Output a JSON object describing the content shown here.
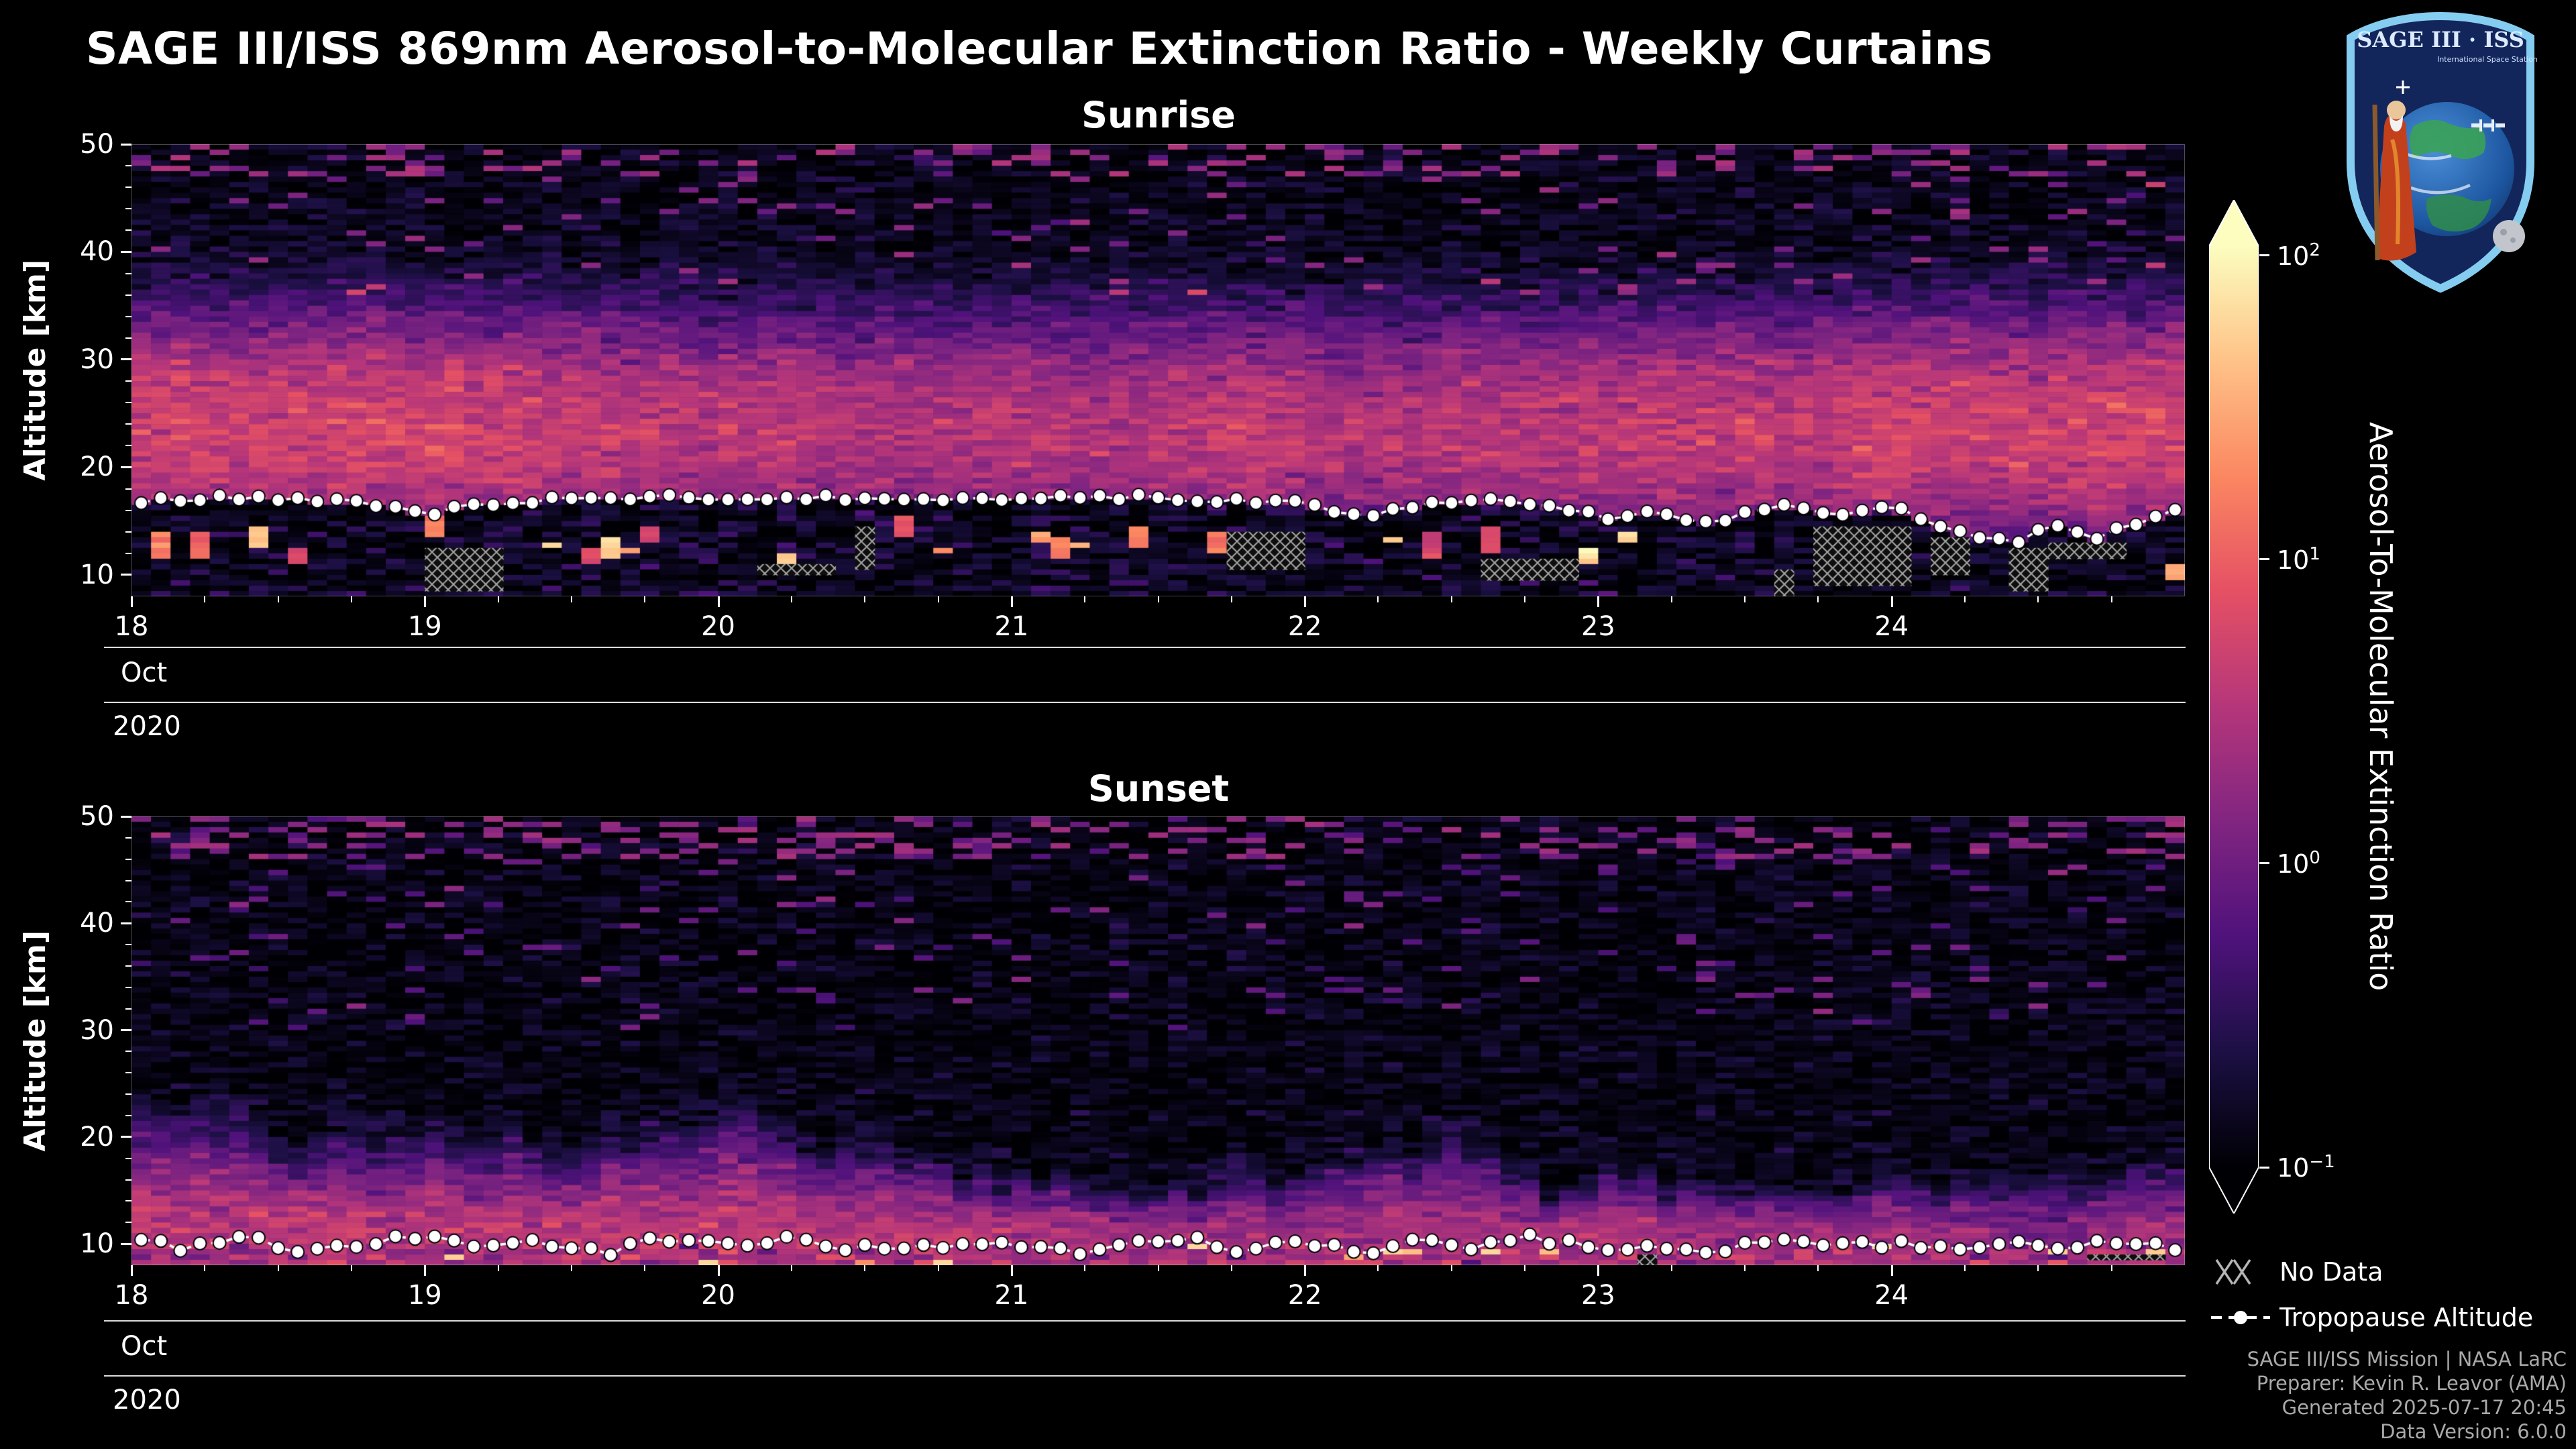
{
  "page": {
    "background": "#000000"
  },
  "header": {
    "title": "SAGE III/ISS 869nm Aerosol-to-Molecular Extinction Ratio - Weekly Curtains"
  },
  "logo": {
    "title": "SAGE III · ISS",
    "subtitle": "International Space Station"
  },
  "colorbar": {
    "label": "Aerosol-To-Molecular Extinction Ratio",
    "ticks": [
      {
        "base": "10",
        "exp": "2",
        "exp_value": 2
      },
      {
        "base": "10",
        "exp": "1",
        "exp_value": 1
      },
      {
        "base": "10",
        "exp": "0",
        "exp_value": 0
      },
      {
        "base": "10",
        "exp": "−1",
        "exp_value": -1
      }
    ]
  },
  "legend": {
    "no_data": "No Data",
    "tropopause": "Tropopause Altitude"
  },
  "footer": {
    "lines": [
      "SAGE III/ISS Mission | NASA LaRC",
      "Preparer: Kevin R. Leavor (AMA)",
      "Generated 2025-07-17 20:45",
      "Data Version: 6.0.0"
    ]
  },
  "chart_data": [
    {
      "type": "heatmap",
      "panel": "Sunrise",
      "x_axis": {
        "tick_labels": [
          "18",
          "19",
          "20",
          "21",
          "22",
          "23",
          "24"
        ],
        "tick_days": [
          18,
          19,
          20,
          21,
          22,
          23,
          24
        ],
        "month": "Oct",
        "year": "2020",
        "range_days": [
          18,
          25
        ]
      },
      "y_axis": {
        "label": "Altitude [km]",
        "tick_values": [
          10,
          20,
          30,
          40,
          50
        ],
        "range_km": [
          8,
          50
        ]
      },
      "color_axis": {
        "scale": "log",
        "min": 0.1,
        "max": 100,
        "colormap": "magma"
      },
      "field": {
        "background_ratio": 0.13,
        "aerosol_band": {
          "center_km": 23.5,
          "sigma_km": 5.2,
          "peak_ratio": 4.2
        },
        "upper_speckle_above_km": 36,
        "tropospheric_streak_max_ratio": 60,
        "no_data_hatched_below_tropopause": true
      },
      "tropopause": {
        "days": [
          18.0,
          18.3,
          18.6,
          18.85,
          19.0,
          19.15,
          19.4,
          19.7,
          20.0,
          20.3,
          20.6,
          21.0,
          21.3,
          21.6,
          21.9,
          22.05,
          22.2,
          22.35,
          22.5,
          22.7,
          22.9,
          23.05,
          23.2,
          23.35,
          23.5,
          23.65,
          23.8,
          24.0,
          24.1,
          24.25,
          24.4,
          24.55,
          24.7,
          24.85,
          24.95
        ],
        "alt_km": [
          16.9,
          17.1,
          17.0,
          16.6,
          15.7,
          16.6,
          17.0,
          17.1,
          17.2,
          17.1,
          17.2,
          17.1,
          17.2,
          17.1,
          16.9,
          16.2,
          15.4,
          16.3,
          16.9,
          16.8,
          16.2,
          15.2,
          16.0,
          14.6,
          15.9,
          16.4,
          15.3,
          16.3,
          15.1,
          13.6,
          12.9,
          14.6,
          13.4,
          15.0,
          15.9
        ]
      }
    },
    {
      "type": "heatmap",
      "panel": "Sunset",
      "x_axis": {
        "tick_labels": [
          "18",
          "19",
          "20",
          "21",
          "22",
          "23",
          "24"
        ],
        "tick_days": [
          18,
          19,
          20,
          21,
          22,
          23,
          24
        ],
        "month": "Oct",
        "year": "2020",
        "range_days": [
          18,
          25
        ]
      },
      "y_axis": {
        "label": "Altitude [km]",
        "tick_values": [
          10,
          20,
          30,
          40,
          50
        ],
        "range_km": [
          8,
          50
        ]
      },
      "color_axis": {
        "scale": "log",
        "min": 0.1,
        "max": 100,
        "colormap": "magma"
      },
      "field": {
        "background_ratio": 0.12,
        "plume": {
          "base_km": 10.5,
          "top_km_min": 13,
          "top_km_max": 25,
          "peak_ratio_min": 0.9,
          "peak_ratio_max": 3.6
        },
        "surface_layer": {
          "below_km": 10.5,
          "ratio_min": 1,
          "ratio_max": 8
        },
        "no_data_hatched_below_tropopause": true
      },
      "tropopause": {
        "days": [
          18.0,
          18.2,
          18.4,
          18.6,
          18.8,
          19.0,
          19.2,
          19.4,
          19.6,
          19.8,
          20.0,
          20.2,
          20.4,
          20.6,
          20.8,
          21.0,
          21.2,
          21.4,
          21.6,
          21.8,
          22.0,
          22.2,
          22.4,
          22.6,
          22.8,
          23.0,
          23.2,
          23.4,
          23.6,
          23.8,
          24.0,
          24.2,
          24.4,
          24.6,
          24.8,
          24.95
        ],
        "alt_km": [
          10.1,
          9.6,
          10.4,
          9.3,
          10.0,
          10.6,
          9.5,
          10.2,
          9.0,
          10.4,
          9.8,
          10.6,
          9.4,
          10.1,
          9.6,
          10.3,
          9.2,
          10.0,
          10.5,
          9.5,
          10.2,
          9.0,
          10.4,
          9.7,
          10.6,
          9.4,
          10.0,
          9.2,
          10.3,
          9.6,
          10.1,
          9.3,
          10.5,
          9.8,
          10.2,
          9.7
        ]
      }
    }
  ]
}
